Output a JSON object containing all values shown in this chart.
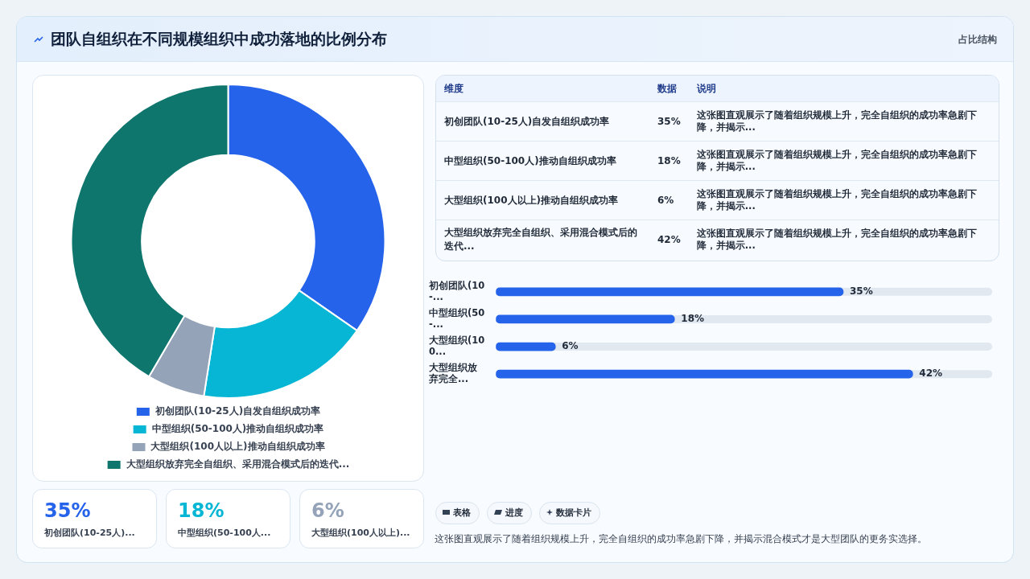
{
  "chart_data": [
    {
      "type": "donut",
      "title": "团队自组织在不同规模组织中成功落地的比例分布",
      "categories": [
        "初创团队(10-25人)自发自组织成功率",
        "中型组织(50-100人)推动自组织成功率",
        "大型组织(100人以上)推动自组织成功率",
        "大型组织放弃完全自组织、采用混合模式后的迭代..."
      ],
      "values": [
        35,
        18,
        6,
        42
      ],
      "colors": [
        "#2563eb",
        "#06b6d4",
        "#94a3b8",
        "#0f766e"
      ],
      "legend": "bottom",
      "annotations": [
        "占比结构"
      ]
    },
    {
      "type": "other",
      "categories": [
        "初创团队(10-25人)自发自组织成功率",
        "中型组织(50-100人)推动自组织成功率",
        "大型组织(100人以上)推动自组织成功率",
        "大型组织放弃完全自组织、采用混合模式后的迭代..."
      ],
      "value_labels": [
        "35%",
        "18%",
        "6%",
        "42%"
      ],
      "annotations": [
        "维度",
        "数据",
        "说明",
        "这张图直观展示了随着组织规模上升，完全自组织的成功率急剧下降，并揭示...",
        "这张图直观展示了随着组织规模上升，完全自组织的成功率急剧下降，并揭示...",
        "这张图直观展示了随着组织规模上升，完全自组织的成功率急剧下降，并揭示...",
        "这张图直观展示了随着组织规模上升，完全自组织的成功率急剧下降，并揭示..."
      ]
    },
    {
      "type": "bar",
      "orientation": "horizontal",
      "categories": [
        "初创团队(10-...",
        "中型组织(50-...",
        "大型组织(100...",
        "大型组织放弃完全..."
      ],
      "values": [
        35,
        18,
        6,
        42
      ],
      "value_labels": [
        "35%",
        "18%",
        "6%",
        "42%"
      ],
      "color": "#2563eb",
      "tick_labels": "y",
      "annotations": [
        "表格",
        "进度",
        "数据卡片",
        "这张图直观展示了随着组织规模上升，完全自组织的成功率急剧下降，并揭示混合模式才是大型团队的更务实选择。"
      ]
    },
    {
      "type": "other",
      "categories": [
        "初创团队(10-25人)...",
        "中型组织(50-100人...",
        "大型组织(100人以上)..."
      ],
      "values": [
        35,
        18,
        6
      ],
      "value_labels": [
        "35%",
        "18%",
        "6%"
      ]
    }
  ]
}
